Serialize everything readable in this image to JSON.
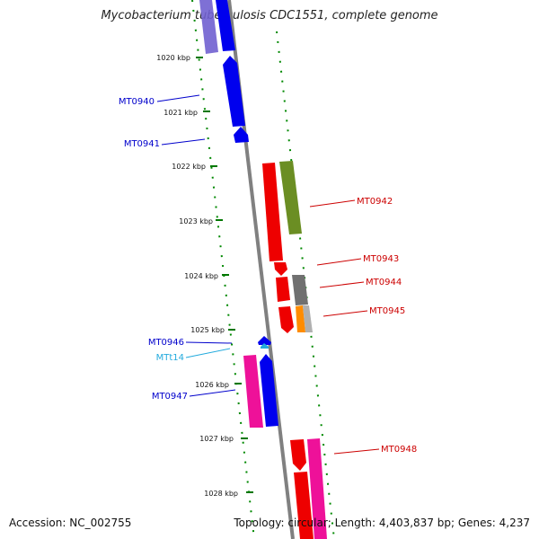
{
  "title": "Mycobacterium tuberculosis CDC1551, complete genome",
  "footer": {
    "accession": "Accession: NC_002755",
    "stats": "Topology: circular; Length: 4,403,837 bp; Genes: 4,237"
  },
  "colors": {
    "dark_blue": "#0000ee",
    "light_purple": "#7060d0",
    "red": "#ee0000",
    "olive": "#6b8e23",
    "gray": "#707070",
    "orange": "#ff8c00",
    "magenta": "#ee1199",
    "cyan_trna": "#2299cc",
    "tick_green": "#007700"
  },
  "kbp_labels": [
    "1020 kbp",
    "1021 kbp",
    "1022 kbp",
    "1023 kbp",
    "1024 kbp",
    "1025 kbp",
    "1026 kbp",
    "1027 kbp",
    "1028 kbp"
  ],
  "gene_labels": {
    "left": [
      "MT0940",
      "MT0941",
      "MT0946",
      "MTt14",
      "MT0947"
    ],
    "right": [
      "MT0942",
      "MT0943",
      "MT0944",
      "MT0945",
      "MT0948"
    ]
  }
}
